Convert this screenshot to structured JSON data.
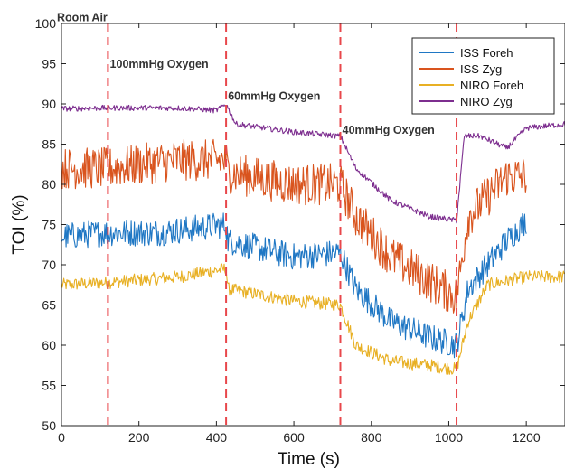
{
  "chart_data": {
    "type": "line",
    "xlabel": "Time (s)",
    "ylabel": "TOI (%)",
    "xlim": [
      0,
      1300
    ],
    "ylim": [
      50,
      100
    ],
    "x_ticks": [
      0,
      200,
      400,
      600,
      800,
      1000,
      1200
    ],
    "y_ticks": [
      50,
      55,
      60,
      65,
      70,
      75,
      80,
      85,
      90,
      95,
      100
    ],
    "grid": false,
    "legend_position": "top-right",
    "vlines": [
      120,
      425,
      720,
      1020
    ],
    "annotations": [
      {
        "text": "Room Air",
        "x": 0,
        "y": 100.3
      },
      {
        "text": "100mmHg Oxygen",
        "x": 125,
        "y": 94.5
      },
      {
        "text": "60mmHg Oxygen",
        "x": 430,
        "y": 90.5
      },
      {
        "text": "40mmHg Oxygen",
        "x": 725,
        "y": 86.3
      }
    ],
    "series": [
      {
        "name": "ISS Foreh",
        "color": "#1f77c4",
        "noise": 1.7,
        "x": [
          0,
          120,
          250,
          425,
          430,
          600,
          720,
          760,
          850,
          950,
          1020,
          1050,
          1150,
          1200
        ],
        "y": [
          73.5,
          74,
          74,
          75,
          73,
          71,
          71.5,
          67,
          63,
          61,
          60,
          67,
          73,
          75.5
        ]
      },
      {
        "name": "ISS Zyg",
        "color": "#d9541e",
        "noise": 2.6,
        "x": [
          0,
          120,
          300,
          425,
          430,
          600,
          720,
          760,
          850,
          950,
          1020,
          1050,
          1150,
          1200
        ],
        "y": [
          82,
          82,
          83,
          83,
          81.5,
          80,
          80,
          76,
          71,
          68,
          66,
          76,
          81,
          81
        ]
      },
      {
        "name": "NIRO Foreh",
        "color": "#e8b024",
        "noise": 0.8,
        "x": [
          0,
          120,
          300,
          425,
          430,
          600,
          720,
          760,
          850,
          950,
          1020,
          1050,
          1100,
          1200,
          1300
        ],
        "y": [
          67.5,
          67.8,
          68.5,
          69.5,
          67,
          65.5,
          65,
          60,
          58,
          57.5,
          57,
          63,
          67.5,
          68.5,
          68.5
        ]
      },
      {
        "name": "NIRO Zyg",
        "color": "#7d2e8f",
        "noise": 0.35,
        "x": [
          0,
          120,
          300,
          400,
          425,
          450,
          600,
          720,
          760,
          850,
          950,
          1020,
          1040,
          1080,
          1150,
          1200,
          1300
        ],
        "y": [
          89.4,
          89.5,
          89.5,
          89.2,
          90,
          87.5,
          86.5,
          86,
          82,
          78,
          76,
          75.5,
          86,
          86,
          84.5,
          87,
          87.5
        ]
      }
    ]
  }
}
